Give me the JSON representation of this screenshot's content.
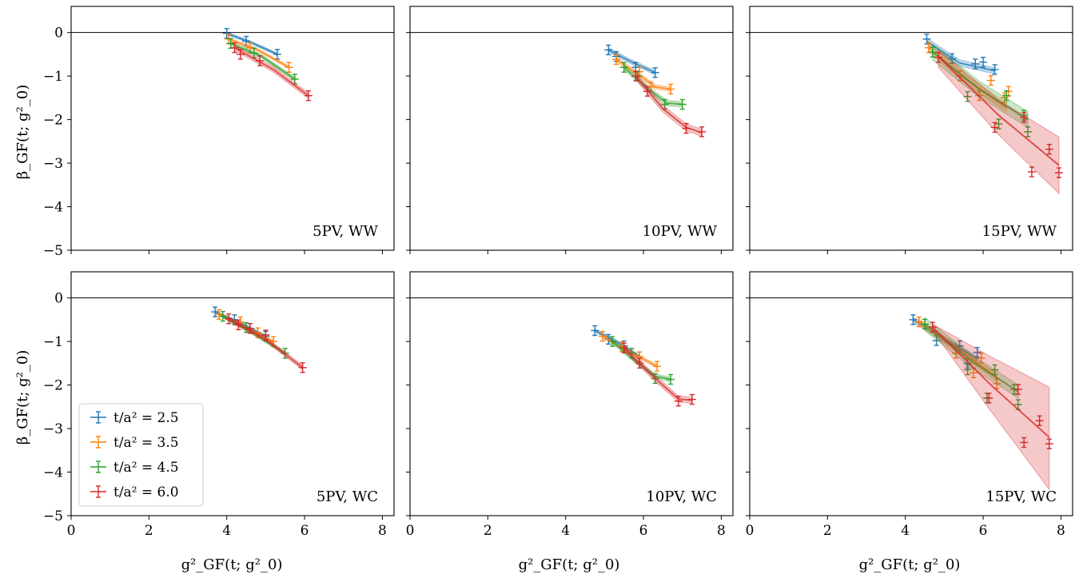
{
  "chart_data": {
    "type": "scatter",
    "xlabel": "g²_GF(t; g²_0)",
    "ylabel": "β_GF(t; g²_0)",
    "xlim": [
      0,
      8.3
    ],
    "ylim": [
      -5,
      0.6
    ],
    "xticks": [
      0,
      2,
      4,
      6,
      8
    ],
    "yticks": [
      0,
      -1,
      -2,
      -3,
      -4,
      -5
    ],
    "colors": {
      "2.5": "#1f77b4",
      "3.5": "#ff7f0e",
      "4.5": "#2ca02c",
      "6.0": "#d62728"
    },
    "legend": {
      "location": "lower-left of bottom-left panel",
      "entries": [
        "t/a² = 2.5",
        "t/a² = 3.5",
        "t/a² = 4.5",
        "t/a² = 6.0"
      ]
    },
    "panels": [
      {
        "label": "5PV, WW",
        "series": [
          {
            "name": "t/a² = 2.5",
            "color": "#1f77b4",
            "x": [
              4.0,
              4.5,
              5.3
            ],
            "y": [
              -0.02,
              -0.2,
              -0.5
            ],
            "fit_x": [
              4.0,
              4.6,
              5.3
            ],
            "fit_y": [
              -0.02,
              -0.22,
              -0.5
            ],
            "band": 0.03
          },
          {
            "name": "t/a² = 3.5",
            "color": "#ff7f0e",
            "x": [
              4.05,
              4.6,
              5.6
            ],
            "y": [
              -0.15,
              -0.35,
              -0.8
            ],
            "fit_x": [
              4.05,
              4.8,
              5.6
            ],
            "fit_y": [
              -0.15,
              -0.4,
              -0.8
            ],
            "band": 0.03
          },
          {
            "name": "t/a² = 4.5",
            "color": "#2ca02c",
            "x": [
              4.1,
              4.7,
              5.75
            ],
            "y": [
              -0.25,
              -0.47,
              -1.07
            ],
            "fit_x": [
              4.1,
              4.9,
              5.75
            ],
            "fit_y": [
              -0.25,
              -0.55,
              -1.07
            ],
            "band": 0.04
          },
          {
            "name": "t/a² = 6.0",
            "color": "#d62728",
            "x": [
              4.2,
              4.35,
              4.85,
              6.1
            ],
            "y": [
              -0.35,
              -0.5,
              -0.65,
              -1.45
            ],
            "fit_x": [
              4.2,
              5.2,
              6.1
            ],
            "fit_y": [
              -0.35,
              -0.85,
              -1.45
            ],
            "band": 0.06
          }
        ]
      },
      {
        "label": "10PV, WW",
        "series": [
          {
            "name": "t/a² = 2.5",
            "color": "#1f77b4",
            "x": [
              5.1,
              5.3,
              5.8,
              6.3
            ],
            "y": [
              -0.4,
              -0.55,
              -0.8,
              -0.92
            ],
            "fit_x": [
              5.1,
              5.7,
              6.3
            ],
            "fit_y": [
              -0.4,
              -0.68,
              -0.92
            ],
            "band": 0.05
          },
          {
            "name": "t/a² = 3.5",
            "color": "#ff7f0e",
            "x": [
              5.3,
              5.9,
              6.2,
              6.7
            ],
            "y": [
              -0.62,
              -0.9,
              -1.25,
              -1.3
            ],
            "fit_x": [
              5.3,
              5.9,
              6.3,
              6.7
            ],
            "fit_y": [
              -0.62,
              -0.98,
              -1.25,
              -1.3
            ],
            "band": 0.05
          },
          {
            "name": "t/a² = 4.5",
            "color": "#2ca02c",
            "x": [
              5.5,
              5.85,
              6.55,
              7.0
            ],
            "y": [
              -0.8,
              -1.0,
              -1.65,
              -1.65
            ],
            "fit_x": [
              5.5,
              6.2,
              6.6,
              7.0
            ],
            "fit_y": [
              -0.8,
              -1.35,
              -1.62,
              -1.65
            ],
            "band": 0.06
          },
          {
            "name": "t/a² = 6.0",
            "color": "#d62728",
            "x": [
              5.8,
              6.1,
              7.1,
              7.5
            ],
            "y": [
              -1.0,
              -1.35,
              -2.2,
              -2.28
            ],
            "fit_x": [
              5.8,
              6.5,
              7.1,
              7.5
            ],
            "fit_y": [
              -1.0,
              -1.75,
              -2.18,
              -2.3
            ],
            "band": 0.08
          }
        ]
      },
      {
        "label": "15PV, WW",
        "series": [
          {
            "name": "t/a² = 2.5",
            "color": "#1f77b4",
            "x": [
              4.55,
              5.2,
              5.8,
              6.0,
              6.3
            ],
            "y": [
              -0.15,
              -0.6,
              -0.72,
              -0.68,
              -0.85
            ],
            "fit_x": [
              4.55,
              5.4,
              6.3
            ],
            "fit_y": [
              -0.2,
              -0.7,
              -0.88
            ],
            "band": 0.07
          },
          {
            "name": "t/a² = 3.5",
            "color": "#ff7f0e",
            "x": [
              4.6,
              5.4,
              5.9,
              6.2,
              6.55,
              6.65
            ],
            "y": [
              -0.35,
              -1.0,
              -1.45,
              -1.1,
              -1.5,
              -1.35
            ],
            "fit_x": [
              4.6,
              5.6,
              6.6
            ],
            "fit_y": [
              -0.35,
              -1.1,
              -1.72
            ],
            "band": 0.1
          },
          {
            "name": "t/a² = 4.5",
            "color": "#2ca02c",
            "x": [
              4.7,
              5.6,
              6.4,
              6.6,
              7.05,
              7.15
            ],
            "y": [
              -0.45,
              -1.47,
              -2.1,
              -1.45,
              -1.9,
              -2.28
            ],
            "fit_x": [
              4.7,
              5.9,
              7.15
            ],
            "fit_y": [
              -0.45,
              -1.3,
              -2.0
            ],
            "band": 0.18
          },
          {
            "name": "t/a² = 6.0",
            "color": "#d62728",
            "x": [
              4.85,
              6.3,
              7.05,
              7.25,
              7.7,
              7.95
            ],
            "y": [
              -0.57,
              -2.18,
              -1.95,
              -3.2,
              -2.68,
              -3.22
            ],
            "fit_x": [
              4.85,
              6.4,
              7.95
            ],
            "fit_y": [
              -0.55,
              -1.9,
              -3.05
            ],
            "band_lo": [
              -0.8,
              -2.35,
              -3.7
            ],
            "band_hi": [
              -0.4,
              -1.55,
              -2.4
            ]
          }
        ]
      },
      {
        "label": "5PV, WC",
        "series": [
          {
            "name": "t/a² = 2.5",
            "color": "#1f77b4",
            "x": [
              3.7,
              4.2,
              4.6,
              5.0
            ],
            "y": [
              -0.32,
              -0.5,
              -0.7,
              -0.88
            ],
            "fit_x": [
              3.7,
              4.4,
              5.0
            ],
            "fit_y": [
              -0.32,
              -0.6,
              -0.88
            ],
            "band": 0.03
          },
          {
            "name": "t/a² = 3.5",
            "color": "#ff7f0e",
            "x": [
              3.8,
              4.35,
              4.8,
              5.2
            ],
            "y": [
              -0.38,
              -0.55,
              -0.8,
              -1.0
            ],
            "fit_x": [
              3.8,
              4.5,
              5.2
            ],
            "fit_y": [
              -0.38,
              -0.68,
              -1.0
            ],
            "band": 0.03
          },
          {
            "name": "t/a² = 4.5",
            "color": "#2ca02c",
            "x": [
              3.9,
              4.5,
              5.5
            ],
            "y": [
              -0.42,
              -0.68,
              -1.27
            ],
            "fit_x": [
              3.9,
              4.7,
              5.5
            ],
            "fit_y": [
              -0.42,
              -0.82,
              -1.27
            ],
            "band": 0.04
          },
          {
            "name": "t/a² = 6.0",
            "color": "#d62728",
            "x": [
              4.05,
              4.3,
              4.6,
              5.0,
              5.95
            ],
            "y": [
              -0.48,
              -0.62,
              -0.7,
              -0.85,
              -1.6
            ],
            "fit_x": [
              4.05,
              5.0,
              5.95
            ],
            "fit_y": [
              -0.48,
              -0.95,
              -1.6
            ],
            "band": 0.05
          }
        ]
      },
      {
        "label": "10PV, WC",
        "series": [
          {
            "name": "t/a² = 2.5",
            "color": "#1f77b4",
            "x": [
              4.75,
              5.1,
              5.5,
              5.9
            ],
            "y": [
              -0.75,
              -0.95,
              -1.1,
              -1.35
            ],
            "fit_x": [
              4.75,
              5.3,
              5.9
            ],
            "fit_y": [
              -0.75,
              -1.0,
              -1.35
            ],
            "band": 0.04
          },
          {
            "name": "t/a² = 3.5",
            "color": "#ff7f0e",
            "x": [
              4.95,
              5.45,
              5.9,
              6.35
            ],
            "y": [
              -0.88,
              -1.12,
              -1.35,
              -1.57
            ],
            "fit_x": [
              4.95,
              5.6,
              6.35
            ],
            "fit_y": [
              -0.88,
              -1.22,
              -1.57
            ],
            "band": 0.04
          },
          {
            "name": "t/a² = 4.5",
            "color": "#2ca02c",
            "x": [
              5.2,
              5.7,
              6.3,
              6.7
            ],
            "y": [
              -1.0,
              -1.27,
              -1.85,
              -1.87
            ],
            "fit_x": [
              5.2,
              5.8,
              6.3,
              6.7
            ],
            "fit_y": [
              -1.0,
              -1.45,
              -1.8,
              -1.87
            ],
            "band": 0.05
          },
          {
            "name": "t/a² = 6.0",
            "color": "#d62728",
            "x": [
              5.5,
              5.9,
              6.9,
              7.25
            ],
            "y": [
              -1.15,
              -1.5,
              -2.37,
              -2.33
            ],
            "fit_x": [
              5.5,
              6.3,
              6.9,
              7.25
            ],
            "fit_y": [
              -1.15,
              -1.85,
              -2.32,
              -2.35
            ],
            "band": 0.07
          }
        ]
      },
      {
        "label": "15PV, WC",
        "series": [
          {
            "name": "t/a² = 2.5",
            "color": "#1f77b4",
            "x": [
              4.2,
              4.8,
              5.4,
              5.6,
              5.85
            ],
            "y": [
              -0.5,
              -0.98,
              -1.1,
              -1.5,
              -1.25
            ],
            "fit_x": [
              4.2,
              5.0,
              5.85
            ],
            "fit_y": [
              -0.5,
              -0.95,
              -1.4
            ],
            "band": 0.06
          },
          {
            "name": "t/a² = 3.5",
            "color": "#ff7f0e",
            "x": [
              4.35,
              5.3,
              5.75,
              5.95,
              6.35
            ],
            "y": [
              -0.55,
              -1.27,
              -1.72,
              -1.38,
              -1.97
            ],
            "fit_x": [
              4.35,
              5.3,
              6.35
            ],
            "fit_y": [
              -0.55,
              -1.15,
              -1.82
            ],
            "band": 0.08
          },
          {
            "name": "t/a² = 4.5",
            "color": "#2ca02c",
            "x": [
              4.5,
              5.6,
              6.1,
              6.3,
              6.8,
              6.9
            ],
            "y": [
              -0.6,
              -1.65,
              -2.3,
              -1.65,
              -2.1,
              -2.45
            ],
            "fit_x": [
              4.5,
              5.7,
              6.9
            ],
            "fit_y": [
              -0.6,
              -1.45,
              -2.15
            ],
            "band": 0.15
          },
          {
            "name": "t/a² = 6.0",
            "color": "#d62728",
            "x": [
              4.7,
              6.15,
              6.9,
              7.05,
              7.45,
              7.7
            ],
            "y": [
              -0.67,
              -2.3,
              -2.1,
              -3.32,
              -2.82,
              -3.35
            ],
            "fit_x": [
              4.7,
              6.2,
              7.7
            ],
            "fit_y": [
              -0.67,
              -2.0,
              -3.2
            ],
            "band_lo": [
              -0.75,
              -2.6,
              -4.4
            ],
            "band_hi": [
              -0.6,
              -1.35,
              -2.05
            ]
          }
        ]
      }
    ]
  }
}
